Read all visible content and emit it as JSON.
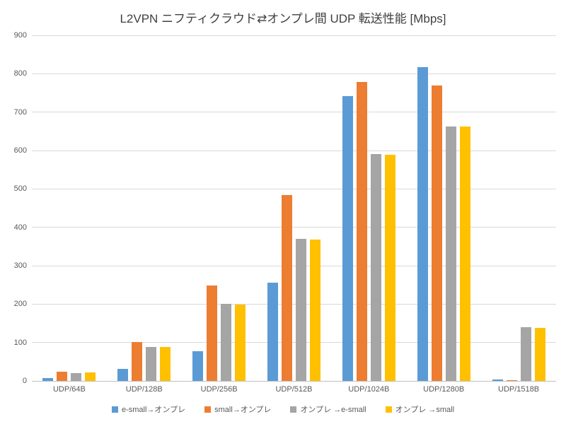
{
  "chart_data": {
    "type": "bar",
    "title": "L2VPN ニフティクラウド⇄オンプレ間 UDP 転送性能 [Mbps]",
    "categories": [
      "UDP/64B",
      "UDP/128B",
      "UDP/256B",
      "UDP/512B",
      "UDP/1024B",
      "UDP/1280B",
      "UDP/1518B"
    ],
    "series": [
      {
        "name": "e-small→オンプレ",
        "color": "#5B9BD5",
        "values": [
          7,
          31,
          78,
          255,
          741,
          818,
          3
        ]
      },
      {
        "name": "small→オンプレ",
        "color": "#ED7D31",
        "values": [
          24,
          102,
          249,
          484,
          778,
          770,
          2
        ]
      },
      {
        "name": "オンプレ →e-small",
        "color": "#A5A5A5",
        "values": [
          20,
          89,
          200,
          370,
          591,
          663,
          139
        ]
      },
      {
        "name": "オンプレ →small",
        "color": "#FFC000",
        "values": [
          22,
          88,
          199,
          368,
          589,
          662,
          138
        ]
      }
    ],
    "xlabel": "",
    "ylabel": "",
    "ylim": [
      0,
      900
    ],
    "ytick_interval": 100,
    "yticks": [
      0,
      100,
      200,
      300,
      400,
      500,
      600,
      700,
      800,
      900
    ],
    "grid": true,
    "legend_position": "bottom"
  },
  "style": {
    "grid_color": "#D9D9D9",
    "axis_line_color": "#BFBFBF",
    "tick_text_color": "#595959",
    "title_color": "#3F3F3F",
    "background": "#FFFFFF"
  }
}
